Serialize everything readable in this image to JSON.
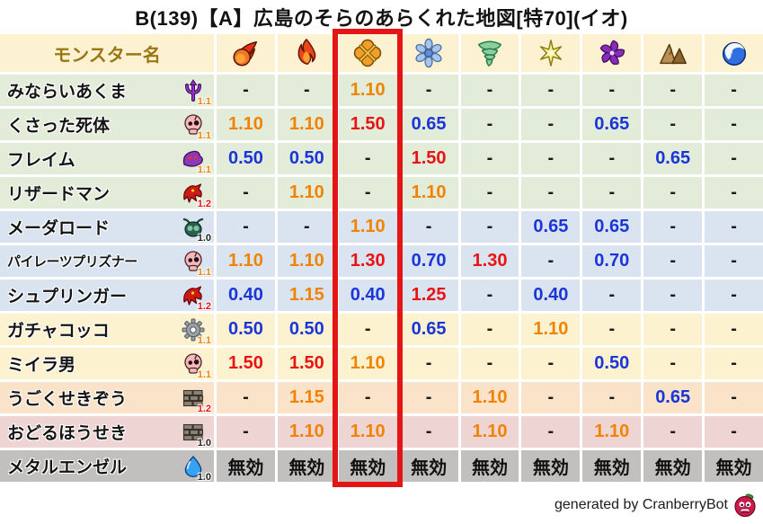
{
  "title": "B(139)【A】広島のそらのあらくれた地図[特70](イオ)",
  "chart_data": {
    "type": "table",
    "title": "B(139)【A】広島のそらのあらくれた地図[特70](イオ)",
    "name_column_header": "モンスター名",
    "element_columns": [
      {
        "id": "fireball",
        "icon": "fireball-icon"
      },
      {
        "id": "flame",
        "icon": "flame-icon"
      },
      {
        "id": "explosion",
        "icon": "explosion-icon",
        "highlighted": true
      },
      {
        "id": "snowflake",
        "icon": "snowflake-icon"
      },
      {
        "id": "tornado",
        "icon": "tornado-icon"
      },
      {
        "id": "sparkle",
        "icon": "sparkle-icon"
      },
      {
        "id": "pinwheel",
        "icon": "pinwheel-icon"
      },
      {
        "id": "rocks",
        "icon": "rocks-icon"
      },
      {
        "id": "wave",
        "icon": "wave-icon"
      }
    ],
    "rows": [
      {
        "monster": "みならいあくま",
        "family_icon": "demon",
        "rank": "1.1",
        "row_tint": "green",
        "values": [
          "-",
          "-",
          "1.10",
          "-",
          "-",
          "-",
          "-",
          "-",
          "-"
        ]
      },
      {
        "monster": "くさった死体",
        "family_icon": "skull",
        "rank": "1.1",
        "row_tint": "green",
        "values": [
          "1.10",
          "1.10",
          "1.50",
          "0.65",
          "-",
          "-",
          "0.65",
          "-",
          "-"
        ]
      },
      {
        "monster": "フレイム",
        "family_icon": "elemental",
        "rank": "1.1",
        "row_tint": "green",
        "values": [
          "0.50",
          "0.50",
          "-",
          "1.50",
          "-",
          "-",
          "-",
          "0.65",
          "-"
        ]
      },
      {
        "monster": "リザードマン",
        "family_icon": "dragon",
        "rank": "1.2",
        "row_tint": "green",
        "values": [
          "-",
          "1.10",
          "-",
          "1.10",
          "-",
          "-",
          "-",
          "-",
          "-"
        ]
      },
      {
        "monster": "メーダロード",
        "family_icon": "bug",
        "rank": "1.0",
        "row_tint": "blue",
        "values": [
          "-",
          "-",
          "1.10",
          "-",
          "-",
          "0.65",
          "0.65",
          "-",
          "-"
        ]
      },
      {
        "monster": "パイレーツプリズナー",
        "family_icon": "skull",
        "rank": "1.1",
        "row_tint": "blue",
        "values": [
          "1.10",
          "1.10",
          "1.30",
          "0.70",
          "1.30",
          "-",
          "0.70",
          "-",
          "-"
        ]
      },
      {
        "monster": "シュプリンガー",
        "family_icon": "dragon",
        "rank": "1.2",
        "row_tint": "blue",
        "values": [
          "0.40",
          "1.15",
          "0.40",
          "1.25",
          "-",
          "0.40",
          "-",
          "-",
          "-"
        ]
      },
      {
        "monster": "ガチャコッコ",
        "family_icon": "gear",
        "rank": "1.1",
        "row_tint": "cream",
        "values": [
          "0.50",
          "0.50",
          "-",
          "0.65",
          "-",
          "1.10",
          "-",
          "-",
          "-"
        ]
      },
      {
        "monster": "ミイラ男",
        "family_icon": "skull",
        "rank": "1.1",
        "row_tint": "cream",
        "values": [
          "1.50",
          "1.50",
          "1.10",
          "-",
          "-",
          "-",
          "0.50",
          "-",
          "-"
        ]
      },
      {
        "monster": "うごくせきぞう",
        "family_icon": "brick",
        "rank": "1.2",
        "row_tint": "peach",
        "values": [
          "-",
          "1.15",
          "-",
          "-",
          "1.10",
          "-",
          "-",
          "0.65",
          "-"
        ]
      },
      {
        "monster": "おどるほうせき",
        "family_icon": "brick",
        "rank": "1.0",
        "row_tint": "pink",
        "values": [
          "-",
          "1.10",
          "1.10",
          "-",
          "1.10",
          "-",
          "1.10",
          "-",
          "-"
        ]
      },
      {
        "monster": "メタルエンゼル",
        "family_icon": "slime",
        "rank": "1.0",
        "row_tint": "gray",
        "values": [
          "無効",
          "無効",
          "無効",
          "無効",
          "無効",
          "無効",
          "無効",
          "無効",
          "無効"
        ]
      }
    ]
  },
  "colors": {
    "highlight_box": "#e31515",
    "value_strong_up": "#e81414",
    "value_up": "#f08300",
    "value_down": "#1a35d8",
    "row_green": "#e3ecd9",
    "row_blue": "#dae4f1",
    "row_cream": "#fdf2d0",
    "row_peach": "#fae3c8",
    "row_pink": "#efd4d4",
    "row_gray": "#c2c0bf",
    "header_bg": "#fcf2d2",
    "header_text": "#9b7615"
  },
  "footer": {
    "credit": "generated by CranberryBot",
    "bot_icon": "cranberry-icon"
  }
}
